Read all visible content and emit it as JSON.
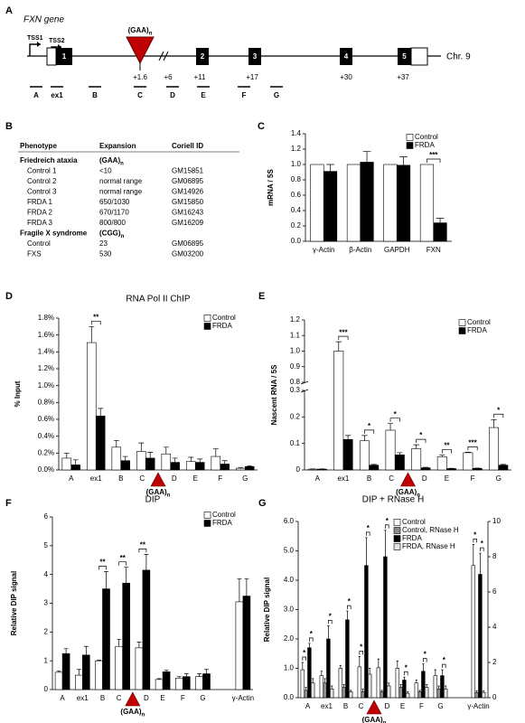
{
  "gene_map": {
    "panel": "A",
    "title": "FXN gene",
    "tss": [
      "TSS1",
      "TSS2"
    ],
    "exons": [
      "1",
      "2",
      "3",
      "4",
      "5"
    ],
    "repeat": {
      "label": "(GAA)",
      "subscript": "n"
    },
    "positions": [
      "+1.6",
      "+6",
      "+11",
      "+17",
      "+30",
      "+37"
    ],
    "chromosome": "Chr. 9",
    "amplicons": [
      "A",
      "ex1",
      "B",
      "C",
      "D",
      "E",
      "F",
      "G"
    ]
  },
  "table": {
    "panel": "B",
    "columns": [
      "Phenotype",
      "Expansion",
      "Coriell ID"
    ],
    "rows": [
      {
        "title": "Friedreich ataxia",
        "expansion": "(GAA)",
        "subscript": "n"
      },
      [
        "Control 1",
        "<10",
        "GM15851"
      ],
      [
        "Control 2",
        "normal range",
        "GM06895"
      ],
      [
        "Control 3",
        "normal range",
        "GM14926"
      ],
      [
        "FRDA 1",
        "650/1030",
        "GM15850"
      ],
      [
        "FRDA 2",
        "670/1170",
        "GM16243"
      ],
      [
        "FRDA 3",
        "800/800",
        "GM16209"
      ],
      {
        "title": "Fragile X syndrome",
        "expansion": "(CGG)",
        "subscript": "n"
      },
      [
        "Control",
        "23",
        "GM06895"
      ],
      [
        "FXS",
        "530",
        "GM03200"
      ]
    ]
  },
  "chart_data": [
    {
      "panel": "C",
      "type": "bar",
      "ylabel": "mRNA / 5S",
      "categories": [
        "γ-Actin",
        "β-Actin",
        "GAPDH",
        "FXN"
      ],
      "ylim": [
        0,
        1.4
      ],
      "yticks": [
        {
          "value": 0,
          "label": "0.0"
        },
        0.2,
        0.4,
        0.6,
        0.8,
        {
          "value": 1,
          "label": "1.0"
        },
        1.2,
        1.4
      ],
      "legend": "upper right",
      "series": [
        {
          "name": "Control",
          "color": "#ffffff",
          "values": [
            1,
            1,
            1,
            1
          ],
          "significance": [
            null,
            null,
            null,
            "***"
          ]
        },
        {
          "name": "FRDA",
          "color": "#000000",
          "values": [
            0.91,
            1.03,
            0.99,
            0.24
          ],
          "errors": [
            0.09,
            0.14,
            0.11,
            0.06
          ]
        }
      ]
    },
    {
      "panel": "D",
      "type": "bar",
      "title": "RNA Pol II ChIP",
      "ylabel": "% Input",
      "categories": [
        "A",
        "ex1",
        "B",
        "C",
        "D",
        "E",
        "F",
        "G"
      ],
      "marker": {
        "label": "(GAA)",
        "subscript": "n"
      },
      "ylim": [
        0,
        1.8
      ],
      "yticks": [
        {
          "value": 0,
          "label": "0.0%"
        },
        {
          "value": 0.2,
          "label": "0.2%"
        },
        {
          "value": 0.4,
          "label": "0.4%"
        },
        {
          "value": 0.6,
          "label": "0.6%"
        },
        {
          "value": 0.8,
          "label": "0.8%"
        },
        {
          "value": 1,
          "label": "1.0%"
        },
        {
          "value": 1.2,
          "label": "1.2%"
        },
        {
          "value": 1.4,
          "label": "1.4%"
        },
        {
          "value": 1.6,
          "label": "1.6%"
        },
        {
          "value": 1.8,
          "label": "1.8%"
        }
      ],
      "legend": "upper right",
      "series": [
        {
          "name": "Control",
          "color": "#ffffff",
          "values": [
            0.14,
            1.51,
            0.27,
            0.22,
            0.19,
            0.1,
            0.16,
            0.02
          ],
          "errors": [
            0.06,
            0.19,
            0.08,
            0.1,
            0.08,
            0.05,
            0.09,
            0.01
          ],
          "significance": [
            null,
            "**",
            null,
            null,
            null,
            null,
            null,
            null
          ]
        },
        {
          "name": "FRDA",
          "color": "#000000",
          "values": [
            0.06,
            0.64,
            0.11,
            0.14,
            0.09,
            0.09,
            0.07,
            0.04
          ],
          "errors": [
            0.06,
            0.09,
            0.05,
            0.07,
            0.05,
            0.04,
            0.04,
            0.01
          ]
        }
      ]
    },
    {
      "panel": "E",
      "type": "bar",
      "ylabel": "Nascent RNA / 5S",
      "categories": [
        "A",
        "ex1",
        "B",
        "C",
        "D",
        "E",
        "F",
        "G"
      ],
      "marker": {
        "label": "(GAA)",
        "subscript": "n"
      },
      "ylim": [
        0,
        1.2
      ],
      "ybreak": [
        0.3,
        0.8
      ],
      "yticks": [
        0,
        0.1,
        0.2,
        0.3,
        0.8,
        0.9,
        {
          "value": 1,
          "label": "1.0"
        },
        1.1,
        1.2
      ],
      "legend": "upper right",
      "series": [
        {
          "name": "Control",
          "color": "#ffffff",
          "values": [
            0.003,
            1.0,
            0.11,
            0.15,
            0.08,
            0.05,
            0.065,
            0.16
          ],
          "errors": [
            0.001,
            0.06,
            0.02,
            0.025,
            0.015,
            0.006,
            0.002,
            0.03
          ],
          "significance": [
            null,
            "***",
            "*",
            "*",
            "*",
            "**",
            "***",
            "*"
          ]
        },
        {
          "name": "FRDA",
          "color": "#000000",
          "values": [
            0.003,
            0.115,
            0.018,
            0.057,
            0.008,
            0.005,
            0.006,
            0.018
          ],
          "errors": [
            0.001,
            0.015,
            0.003,
            0.008,
            0.002,
            0.001,
            0.001,
            0.003
          ]
        }
      ]
    },
    {
      "panel": "F",
      "type": "bar",
      "title": "DIP",
      "ylabel": "Relative DIP signal",
      "categories": [
        "A",
        "ex1",
        "B",
        "C",
        "D",
        "E",
        "F",
        "G",
        "γ-Actin"
      ],
      "marker": {
        "label": "(GAA)",
        "subscript": "n"
      },
      "ylim": [
        0,
        6
      ],
      "yticks": [
        0,
        1,
        2,
        3,
        4,
        5,
        6
      ],
      "legend": "upper right",
      "series": [
        {
          "name": "Control",
          "color": "#ffffff",
          "values": [
            0.6,
            0.5,
            1.0,
            1.5,
            1.45,
            0.35,
            0.4,
            0.45,
            3.05
          ],
          "errors": [
            0.05,
            0.2,
            0.02,
            0.25,
            0.2,
            0.03,
            0.05,
            0.1,
            0.8
          ],
          "significance": [
            null,
            null,
            "**",
            "**",
            "**",
            null,
            null,
            null,
            null
          ]
        },
        {
          "name": "FRDA",
          "color": "#000000",
          "values": [
            1.25,
            1.2,
            3.5,
            3.7,
            4.15,
            0.62,
            0.45,
            0.55,
            3.25
          ],
          "errors": [
            0.17,
            0.3,
            0.6,
            0.55,
            0.55,
            0.05,
            0.1,
            0.15,
            0.6
          ]
        }
      ]
    },
    {
      "panel": "G",
      "type": "bar",
      "title": "DIP + RNase H",
      "ylabel": "Relative DIP signal",
      "categories": [
        "A",
        "ex1",
        "B",
        "C",
        "D",
        "E",
        "F",
        "G",
        "γ-Actin"
      ],
      "category_axes": [
        "y",
        "y",
        "y",
        "y",
        "y",
        "y",
        "y",
        "y",
        "y2"
      ],
      "marker": {
        "label": "(GAA)",
        "subscript": "n"
      },
      "ylim": [
        0,
        6
      ],
      "yticks": [
        {
          "value": 0,
          "label": "0.0"
        },
        {
          "value": 1,
          "label": "1.0"
        },
        {
          "value": 2,
          "label": "2.0"
        },
        {
          "value": 3,
          "label": "3.0"
        },
        {
          "value": 4,
          "label": "4.0"
        },
        {
          "value": 5,
          "label": "5.0"
        },
        {
          "value": 6,
          "label": "6.0"
        }
      ],
      "y2lim": [
        0,
        10
      ],
      "y2ticks": [
        0,
        2,
        4,
        6,
        8,
        10
      ],
      "legend": "upper right",
      "series": [
        {
          "name": "Control",
          "color": "#ffffff",
          "values": [
            0.95,
            0.75,
            1.0,
            1.05,
            1.02,
            1.0,
            0.5,
            0.75,
            7.5
          ],
          "errors": [
            0.25,
            0.15,
            0.1,
            0.35,
            0.3,
            0.25,
            0.1,
            0.2,
            1.2
          ],
          "significance": [
            "*",
            null,
            null,
            "*",
            null,
            null,
            null,
            null,
            "*"
          ]
        },
        {
          "name": "Control, RNase H",
          "color": "#8c8c8c",
          "values": [
            0.25,
            0.5,
            0.35,
            0.2,
            0.2,
            0.35,
            0.2,
            0.3,
            0.3
          ],
          "errors": [
            0.1,
            0.15,
            0.1,
            0.1,
            0.05,
            0.1,
            0.05,
            0.1,
            0.1
          ]
        },
        {
          "name": "FRDA",
          "color": "#000000",
          "values": [
            1.7,
            2.0,
            2.65,
            4.5,
            4.8,
            0.6,
            0.9,
            0.75,
            7.0
          ],
          "errors": [
            0.15,
            0.45,
            0.3,
            0.95,
            0.9,
            0.1,
            0.25,
            0.2,
            1.2
          ],
          "significance": [
            "*",
            "*",
            "*",
            "*",
            "*",
            "*",
            "*",
            "*",
            "*"
          ]
        },
        {
          "name": "FRDA, RNase H",
          "color": "#e3e3e3",
          "values": [
            0.5,
            0.3,
            0.2,
            0.8,
            0.4,
            0.15,
            0.35,
            0.3,
            0.3
          ],
          "errors": [
            0.15,
            0.1,
            0.05,
            0.2,
            0.1,
            0.05,
            0.1,
            0.1,
            0.1
          ]
        }
      ]
    }
  ]
}
